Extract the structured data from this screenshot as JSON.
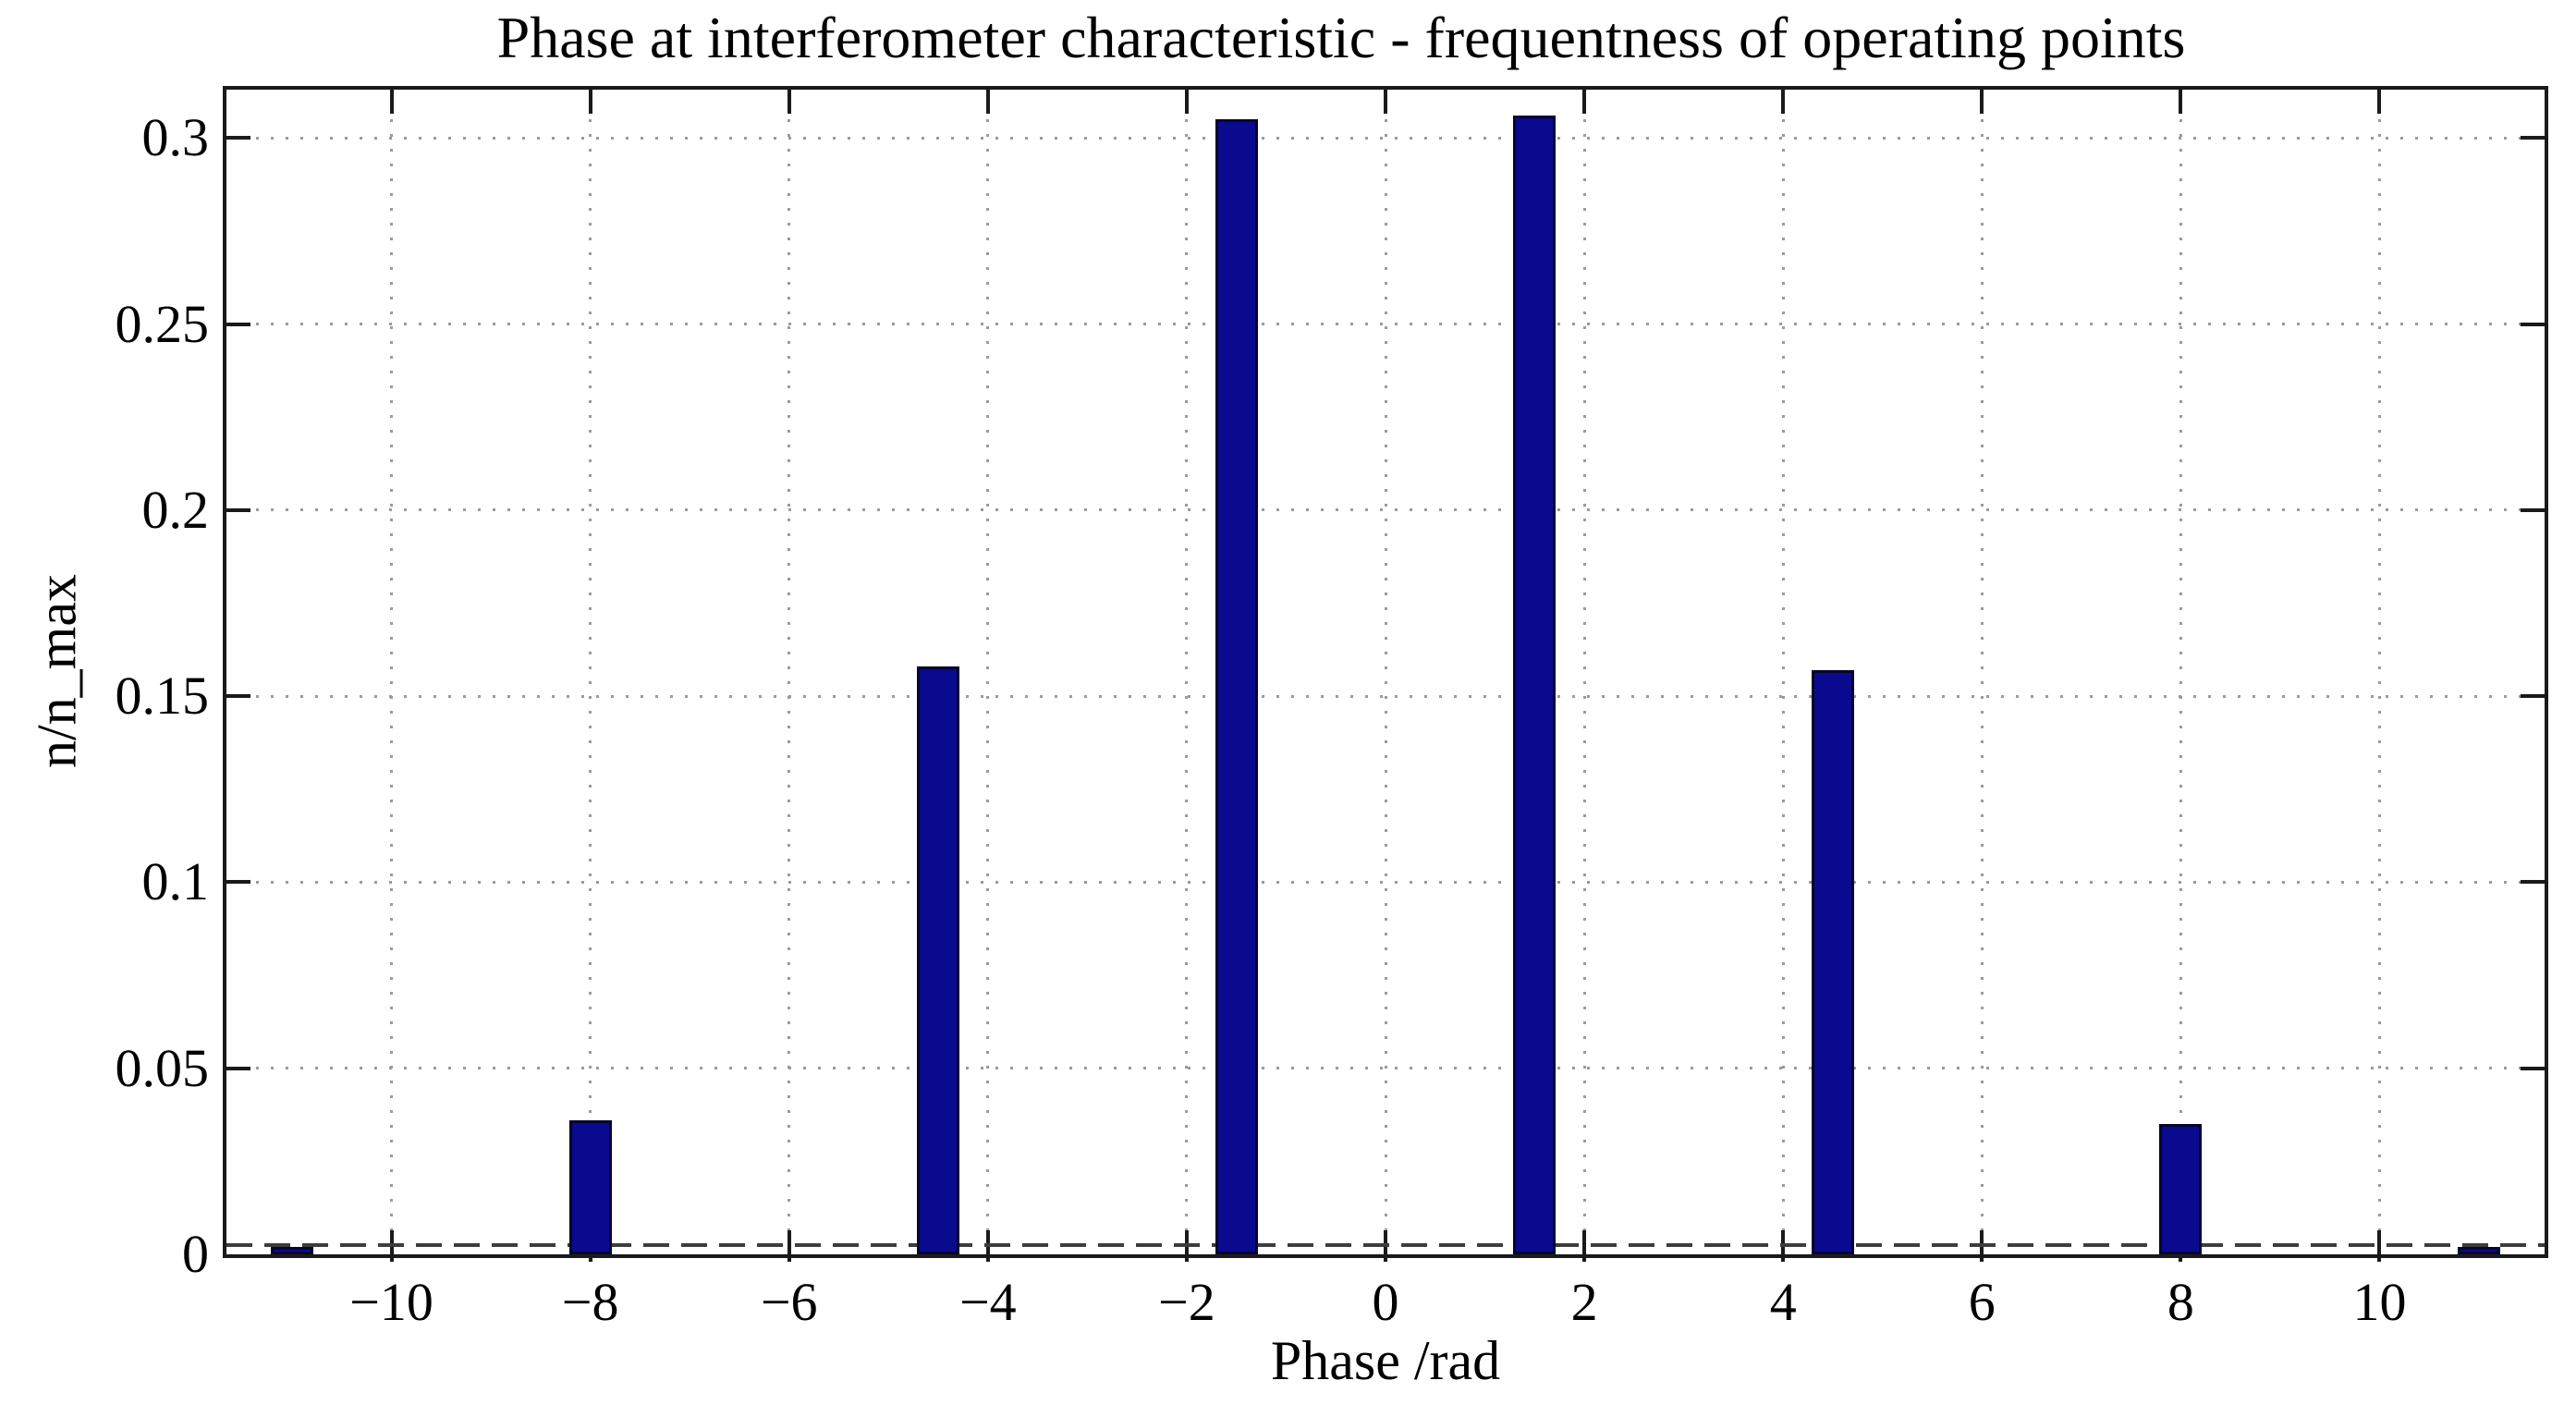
{
  "figure": {
    "title": "Phase at interferometer characteristic - frequentness of operating points",
    "xlabel": "Phase /rad",
    "ylabel": "n/n_max",
    "background_color": "#ffffff",
    "bar_fill_color": "#0a0a8f",
    "bar_edge_color": "#05052e",
    "grid_color": "#9a9aa0",
    "axis_color": "#1a1a1a",
    "dashed_line_color": "#3d3d3d"
  },
  "chart_data": {
    "type": "bar",
    "title": "Phase at interferometer characteristic - frequentness of operating points",
    "xlabel": "Phase /rad",
    "ylabel": "n/n_max",
    "x": [
      -11.0,
      -8.0,
      -4.5,
      -1.5,
      1.5,
      4.5,
      8.0,
      11.0
    ],
    "values": [
      0.002,
      0.036,
      0.158,
      0.305,
      0.306,
      0.157,
      0.035,
      0.002
    ],
    "bar_width": 0.43,
    "xlim": [
      -11.66,
      11.66
    ],
    "ylim": [
      0,
      0.313
    ],
    "grid": "dotted",
    "legend": "none",
    "dashed_baseline_y": 0.0015,
    "x_ticks": [
      {
        "value": -10,
        "label": "−10"
      },
      {
        "value": -8,
        "label": "−8"
      },
      {
        "value": -6,
        "label": "−6"
      },
      {
        "value": -4,
        "label": "−4"
      },
      {
        "value": -2,
        "label": "−2"
      },
      {
        "value": 0,
        "label": "0"
      },
      {
        "value": 2,
        "label": "2"
      },
      {
        "value": 4,
        "label": "4"
      },
      {
        "value": 6,
        "label": "6"
      },
      {
        "value": 8,
        "label": "8"
      },
      {
        "value": 10,
        "label": "10"
      }
    ],
    "y_ticks": [
      {
        "value": 0,
        "label": "0"
      },
      {
        "value": 0.05,
        "label": "0.05"
      },
      {
        "value": 0.1,
        "label": "0.1"
      },
      {
        "value": 0.15,
        "label": "0.15"
      },
      {
        "value": 0.2,
        "label": "0.2"
      },
      {
        "value": 0.25,
        "label": "0.25"
      },
      {
        "value": 0.3,
        "label": "0.3"
      }
    ]
  }
}
